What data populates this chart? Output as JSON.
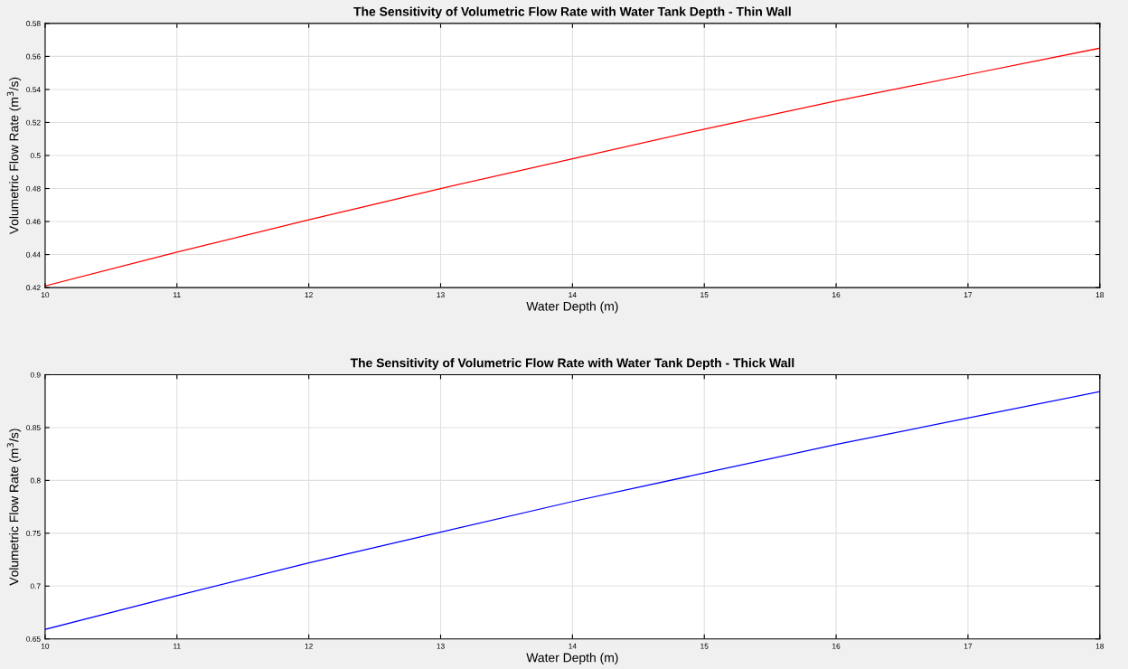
{
  "chart_data": [
    {
      "type": "line",
      "title": "The Sensitivity of Volumetric Flow Rate with Water Tank Depth - Thin Wall",
      "xlabel": "Water Depth (m)",
      "ylabel": "Volumetric Flow Rate (m$^{3}$/s)",
      "x": [
        10,
        11,
        12,
        13,
        14,
        15,
        16,
        17,
        18
      ],
      "series": [
        {
          "color": "#ff0000",
          "values": [
            0.421,
            0.4415,
            0.461,
            0.48,
            0.498,
            0.516,
            0.533,
            0.549,
            0.565
          ]
        }
      ],
      "xlim": [
        10,
        18
      ],
      "xticks": [
        10,
        11,
        12,
        13,
        14,
        15,
        16,
        17,
        18
      ],
      "ylim": [
        0.42,
        0.58
      ],
      "yticks": [
        0.42,
        0.44,
        0.46,
        0.48,
        0.5,
        0.52,
        0.54,
        0.56,
        0.58
      ],
      "grid": true,
      "marker": "none",
      "line_style": "solid"
    },
    {
      "type": "line",
      "title": "The Sensitivity of Volumetric Flow Rate with Water Tank Depth - Thick Wall",
      "xlabel": "Water Depth (m)",
      "ylabel": "Volumetric Flow Rate (m$^{3}$/s)",
      "x": [
        10,
        11,
        12,
        13,
        14,
        15,
        16,
        17,
        18
      ],
      "series": [
        {
          "color": "#0000ff",
          "values": [
            0.659,
            0.691,
            0.722,
            0.751,
            0.78,
            0.807,
            0.834,
            0.859,
            0.884
          ]
        }
      ],
      "xlim": [
        10,
        18
      ],
      "xticks": [
        10,
        11,
        12,
        13,
        14,
        15,
        16,
        17,
        18
      ],
      "ylim": [
        0.65,
        0.9
      ],
      "yticks": [
        0.65,
        0.7,
        0.75,
        0.8,
        0.85,
        0.9
      ],
      "grid": true,
      "marker": "none",
      "line_style": "solid"
    }
  ]
}
